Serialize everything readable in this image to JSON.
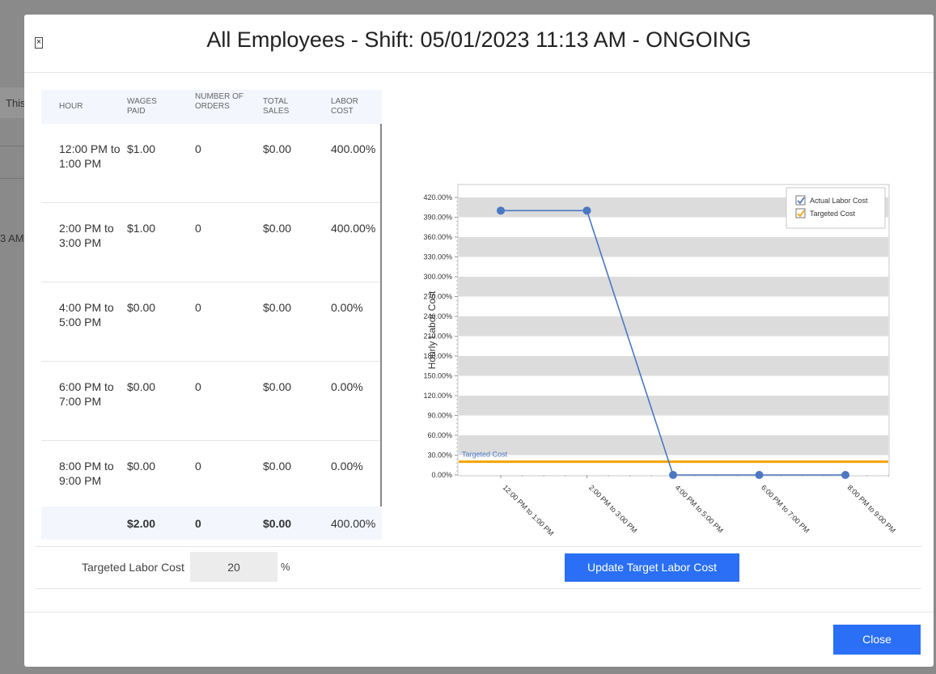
{
  "background": {
    "fragment_1": "This",
    "fragment_2": "3 AM"
  },
  "modal": {
    "title": "All Employees - Shift: 05/01/2023 11:13 AM - ONGOING",
    "close_icon": "×"
  },
  "table": {
    "headers": [
      "HOUR",
      "WAGES PAID",
      "NUMBER OF ORDERS",
      "TOTAL SALES",
      "LABOR COST"
    ],
    "rows": [
      [
        "12:00 PM to 1:00 PM",
        "$1.00",
        "0",
        "$0.00",
        "400.00%"
      ],
      [
        "2:00 PM to 3:00 PM",
        "$1.00",
        "0",
        "$0.00",
        "400.00%"
      ],
      [
        "4:00 PM to 5:00 PM",
        "$0.00",
        "0",
        "$0.00",
        "0.00%"
      ],
      [
        "6:00 PM to 7:00 PM",
        "$0.00",
        "0",
        "$0.00",
        "0.00%"
      ],
      [
        "8:00 PM to 9:00 PM",
        "$0.00",
        "0",
        "$0.00",
        "0.00%"
      ]
    ],
    "footer": [
      "",
      "$2.00",
      "0",
      "$0.00",
      "400.00%"
    ]
  },
  "chart_data": {
    "type": "line",
    "ylabel": "Hourly Labor Cost",
    "xlabel": "",
    "categories": [
      "12:00 PM to 1:00 PM",
      "2:00 PM to 3:00 PM",
      "4:00 PM to 5:00 PM",
      "6:00 PM to 7:00 PM",
      "8:00 PM to 9:00 PM"
    ],
    "series": [
      {
        "name": "Actual Labor Cost",
        "values": [
          400,
          400,
          0,
          0,
          0
        ],
        "color": "#4a78c2"
      }
    ],
    "target_line": {
      "name": "Targeted Cost",
      "value": 20,
      "label": "Targeted Cost",
      "color": "#f5a300"
    },
    "yticks": [
      "0.00%",
      "30.00%",
      "60.00%",
      "90.00%",
      "120.00%",
      "150.00%",
      "180.00%",
      "210.00%",
      "240.00%",
      "270.00%",
      "300.00%",
      "330.00%",
      "360.00%",
      "390.00%",
      "420.00%"
    ],
    "ylim": [
      0,
      420
    ],
    "legend": {
      "position": "top-right",
      "items": [
        "Actual Labor Cost",
        "Targeted Cost"
      ]
    },
    "stripes": true
  },
  "target": {
    "label": "Targeted Labor Cost",
    "value": "20",
    "unit": "%",
    "update_label": "Update Target Labor Cost"
  },
  "footer": {
    "close_label": "Close"
  },
  "colors": {
    "accent": "#2a6ff5",
    "series": "#4a78c2",
    "target": "#f5a300"
  }
}
